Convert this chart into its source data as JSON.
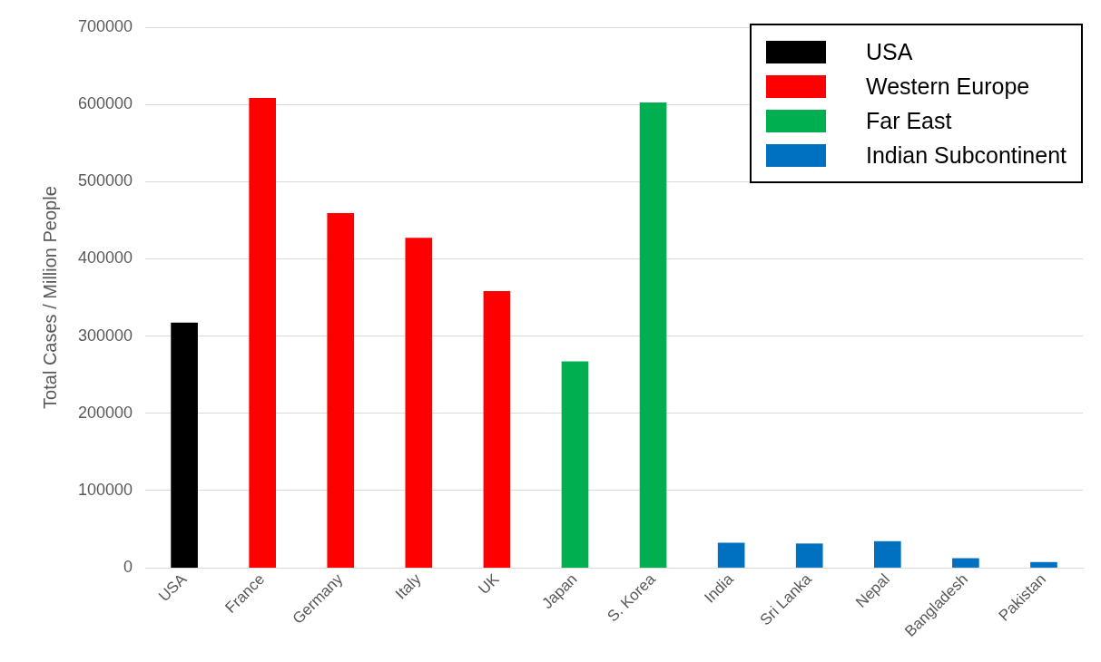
{
  "chart_data": {
    "type": "bar",
    "ylabel": "Total Cases / Million People",
    "categories": [
      "USA",
      "France",
      "Germany",
      "Italy",
      "UK",
      "Japan",
      "S. Korea",
      "India",
      "Sri Lanka",
      "Nepal",
      "Bangladesh",
      "Pakistan"
    ],
    "series": [
      {
        "name": "USA",
        "color": "#000000",
        "values": [
          317000,
          null,
          null,
          null,
          null,
          null,
          null,
          null,
          null,
          null,
          null,
          null
        ]
      },
      {
        "name": "Western Europe",
        "color": "#ff0000",
        "values": [
          null,
          608000,
          459000,
          427000,
          358000,
          null,
          null,
          null,
          null,
          null,
          null,
          null
        ]
      },
      {
        "name": "Far East",
        "color": "#00b050",
        "values": [
          null,
          null,
          null,
          null,
          null,
          267000,
          602000,
          null,
          null,
          null,
          null,
          null
        ]
      },
      {
        "name": "Indian Subcontinent",
        "color": "#0070c0",
        "values": [
          null,
          null,
          null,
          null,
          null,
          null,
          null,
          32000,
          31000,
          34000,
          12000,
          7000
        ]
      }
    ],
    "ylim": [
      0,
      700000
    ],
    "yticks": [
      0,
      100000,
      200000,
      300000,
      400000,
      500000,
      600000,
      700000
    ],
    "grid": "y",
    "legend": "top right"
  }
}
